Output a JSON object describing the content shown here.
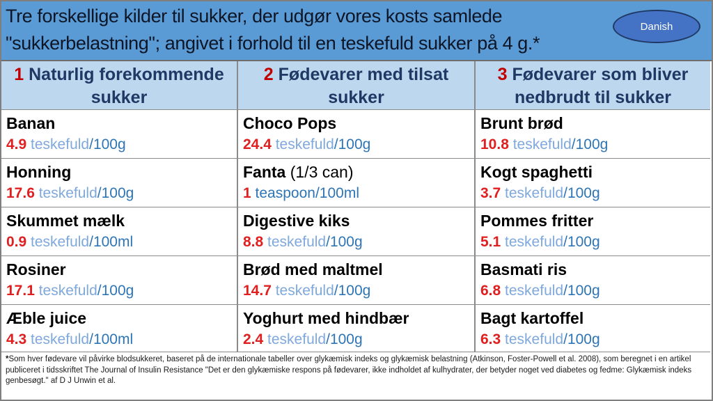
{
  "banner": {
    "title": "Tre forskellige kilder til sukker, der udgør vores kosts samlede \"sukkerbelastning\"; angivet i forhold til en teskefuld sukker på 4 g.*",
    "badge": "Danish"
  },
  "colors": {
    "banner_bg": "#5b9bd5",
    "badge_fill": "#4472c4",
    "badge_border": "#1f3864",
    "column_header_bg": "#bdd7ee",
    "column_header_text": "#1f3864",
    "header_number_red": "#c00000",
    "value_number_red": "#e02020",
    "unit_light_blue": "#7fa8dc",
    "per_dark_blue": "#2e75b6",
    "border_gray": "#8a8a8a"
  },
  "columns": [
    {
      "number": "1",
      "title": "Naturlig forekommende sukker"
    },
    {
      "number": "2",
      "title": "Fødevarer med tilsat sukker"
    },
    {
      "number": "3",
      "title": "Fødevarer som bliver nedbrudt til sukker"
    }
  ],
  "rows": [
    [
      {
        "name": "Banan",
        "suffix": "",
        "num": "4.9",
        "unit": "teskefuld",
        "per": "/100g",
        "unit_dark": false
      },
      {
        "name": "Choco Pops",
        "suffix": "",
        "num": "24.4",
        "unit": "teskefuld",
        "per": "/100g",
        "unit_dark": false
      },
      {
        "name": "Brunt brød",
        "suffix": "",
        "num": "10.8",
        "unit": "teskefuld",
        "per": "/100g",
        "unit_dark": false
      }
    ],
    [
      {
        "name": "Honning",
        "suffix": "",
        "num": "17.6",
        "unit": "teskefuld",
        "per": "/100g",
        "unit_dark": false
      },
      {
        "name": "Fanta",
        "suffix": " (1/3 can)",
        "num": "1",
        "unit": "teaspoon",
        "per": "/100ml",
        "unit_dark": true
      },
      {
        "name": "Kogt spaghetti",
        "suffix": "",
        "num": "3.7",
        "unit": "teskefuld",
        "per": "/100g",
        "unit_dark": false
      }
    ],
    [
      {
        "name": "Skummet mælk",
        "suffix": "",
        "num": "0.9",
        "unit": "teskefuld",
        "per": "/100ml",
        "unit_dark": false
      },
      {
        "name": "Digestive kiks",
        "suffix": "",
        "num": "8.8",
        "unit": "teskefuld",
        "per": "/100g",
        "unit_dark": false
      },
      {
        "name": "Pommes fritter",
        "suffix": "",
        "num": "5.1",
        "unit": "teskefuld",
        "per": "/100g",
        "unit_dark": false
      }
    ],
    [
      {
        "name": "Rosiner",
        "suffix": "",
        "num": "17.1",
        "unit": "teskefuld",
        "per": "/100g",
        "unit_dark": false
      },
      {
        "name": "Brød med maltmel",
        "suffix": "",
        "num": "14.7",
        "unit": "teskefuld",
        "per": "/100g",
        "unit_dark": false
      },
      {
        "name": "Basmati ris",
        "suffix": "",
        "num": "6.8",
        "unit": "teskefuld",
        "per": "/100g",
        "unit_dark": false
      }
    ],
    [
      {
        "name": "Æble juice",
        "suffix": "",
        "num": "4.3",
        "unit": "teskefuld",
        "per": "/100ml",
        "unit_dark": false
      },
      {
        "name": "Yoghurt med hindbær",
        "suffix": "",
        "num": "2.4",
        "unit": "teskefuld",
        "per": "/100g",
        "unit_dark": false
      },
      {
        "name": "Bagt kartoffel",
        "suffix": "",
        "num": "6.3",
        "unit": "teskefuld",
        "per": "/100g",
        "unit_dark": false
      }
    ]
  ],
  "footnote": {
    "asterisk": "*",
    "text": "Som hver fødevare vil påvirke blodsukkeret, baseret på de internationale tabeller over glykæmisk indeks og glykæmisk belastning (Atkinson, Foster-Powell et al. 2008), som beregnet i en artikel publiceret i tidsskriftet The Journal of Insulin Resistance \"Det er den glykæmiske respons på fødevarer, ikke indholdet af kulhydrater, der betyder noget ved diabetes og fedme: Glykæmisk indeks genbesøgt.\" af D J Unwin et al."
  }
}
